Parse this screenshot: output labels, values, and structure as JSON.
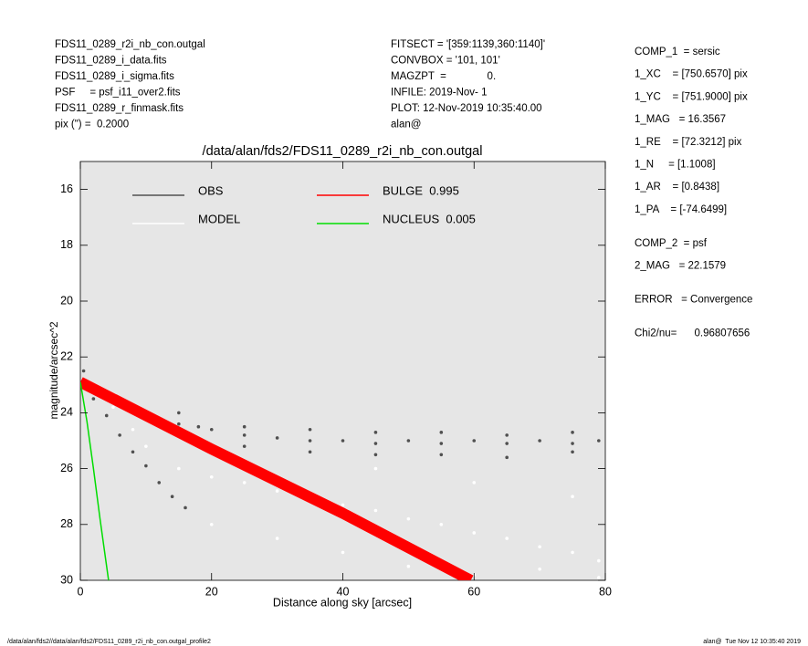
{
  "header": {
    "left": [
      "FDS11_0289_r2i_nb_con.outgal",
      "FDS11_0289_i_data.fits",
      "FDS11_0289_i_sigma.fits",
      "PSF     = psf_i11_over2.fits",
      "FDS11_0289_r_finmask.fits",
      "pix (\") =  0.2000"
    ],
    "middle": [
      "FITSECT = '[359:1139,360:1140]'",
      "CONVBOX = '101, 101'",
      "MAGZPT  =              0.",
      "INFILE: 2019-Nov- 1",
      "PLOT: 12-Nov-2019 10:35:40.00",
      "alan@"
    ]
  },
  "params": [
    [
      "COMP_1  = sersic",
      "1_XC    = [750.6570] pix",
      "1_YC    = [751.9000] pix",
      "1_MAG   = 16.3567",
      "1_RE    = [72.3212] pix",
      "1_N     = [1.1008]",
      "1_AR    = [0.8438]",
      "1_PA    = [-74.6499]"
    ],
    [
      "COMP_2  = psf",
      "2_MAG   = 22.1579"
    ],
    [
      "ERROR   = Convergence"
    ],
    [
      "Chi2/nu=      0.96807656"
    ]
  ],
  "footer": {
    "left": "/data/alan/fds2//data/alan/fds2/FDS11_0289_r2i_nb_con.outgal_profile2",
    "right": "alan@  Tue Nov 12 10:35:40 2019"
  },
  "chart_data": {
    "type": "scatter",
    "title": "/data/alan/fds2/FDS11_0289_r2i_nb_con.outgal",
    "x_label": "Distance along sky [arcsec]",
    "y_label": "magnitude/arcsec^2",
    "xlim": [
      0,
      80
    ],
    "xticks": [
      0,
      20,
      40,
      60,
      80
    ],
    "ylim": [
      30,
      15
    ],
    "yticks": [
      16,
      18,
      20,
      22,
      24,
      26,
      28,
      30
    ],
    "series": [
      {
        "name": "OBS",
        "color": "#505050",
        "mode": "markers",
        "x": [
          0.5,
          1,
          2,
          3,
          4,
          5,
          6,
          8,
          10,
          12,
          15,
          18,
          20,
          25,
          30,
          35,
          40,
          45,
          50,
          55,
          60,
          65,
          70,
          75,
          79,
          2,
          4,
          6,
          8,
          10,
          12,
          14,
          16,
          15,
          25,
          35,
          45,
          55,
          65,
          75,
          15,
          25,
          35,
          45,
          55,
          65,
          75
        ],
        "values": [
          22.5,
          22.9,
          23.1,
          23.3,
          23.4,
          23.6,
          23.7,
          23.9,
          24.0,
          24.2,
          24.4,
          24.5,
          24.6,
          24.8,
          24.9,
          25.0,
          25.0,
          25.1,
          25.0,
          25.1,
          25.0,
          25.1,
          25.0,
          25.1,
          25.0,
          23.5,
          24.1,
          24.8,
          25.4,
          25.9,
          26.5,
          27.0,
          27.4,
          24.0,
          24.5,
          24.6,
          24.7,
          24.7,
          24.8,
          24.7,
          24.8,
          25.2,
          25.4,
          25.5,
          25.5,
          25.6,
          25.4
        ]
      },
      {
        "name": "MODEL",
        "color": "#ffffff",
        "mode": "markers",
        "x": [
          3,
          5,
          8,
          10,
          15,
          20,
          25,
          30,
          35,
          40,
          45,
          50,
          55,
          60,
          65,
          70,
          75,
          79,
          20,
          30,
          40,
          50,
          60,
          70,
          79,
          45,
          60,
          75
        ],
        "values": [
          23.3,
          23.8,
          24.6,
          25.2,
          26.0,
          26.3,
          26.5,
          26.8,
          27.0,
          27.3,
          27.5,
          27.8,
          28.0,
          28.3,
          28.5,
          28.8,
          29.0,
          29.3,
          28.0,
          28.5,
          29.0,
          29.5,
          29.8,
          29.6,
          29.9,
          26.0,
          26.5,
          27.0
        ]
      },
      {
        "name": "BULGE  0.995",
        "color": "#ff0000",
        "mode": "band",
        "x": [
          0,
          20,
          40,
          59.5
        ],
        "values": [
          22.9,
          25.3,
          27.6,
          30
        ]
      },
      {
        "name": "NUCLEUS  0.005",
        "color": "#00dd00",
        "mode": "line",
        "x": [
          0,
          1,
          2,
          3,
          4.3
        ],
        "values": [
          22.9,
          24.3,
          26,
          27.8,
          30
        ]
      }
    ]
  }
}
